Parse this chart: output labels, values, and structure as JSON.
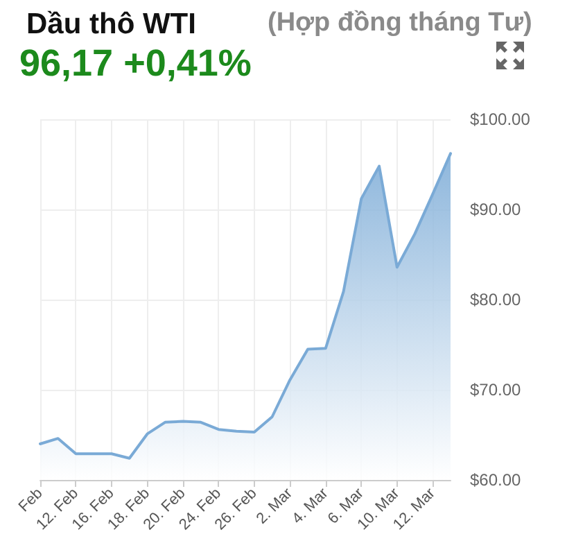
{
  "chart_data": {
    "type": "area",
    "title": "Dầu thô WTI",
    "subtitle": "(Hợp đồng tháng Tư)",
    "annotations": [
      "96,17 +0,41%"
    ],
    "categories": [
      "Feb",
      null,
      "12. Feb",
      null,
      "16. Feb",
      null,
      "18. Feb",
      null,
      "20. Feb",
      null,
      "24. Feb",
      null,
      "26. Feb",
      null,
      "2. Mar",
      null,
      "4. Mar",
      null,
      "6. Mar",
      null,
      "10. Mar",
      null,
      "12. Mar",
      null
    ],
    "series": [
      {
        "color": "#7aaad6",
        "values": [
          64.0,
          64.6,
          62.9,
          62.9,
          62.9,
          62.4,
          65.1,
          66.4,
          66.5,
          66.4,
          65.6,
          65.4,
          65.3,
          67.0,
          71.1,
          74.5,
          74.6,
          80.9,
          91.2,
          94.8,
          83.6,
          87.3,
          91.7,
          96.2
        ]
      }
    ],
    "ylim": [
      60,
      100
    ],
    "yticks": [
      {
        "value": 60,
        "label": "$60.00"
      },
      {
        "value": 70,
        "label": "$70.00"
      },
      {
        "value": 80,
        "label": "$80.00"
      },
      {
        "value": 90,
        "label": "$90.00"
      },
      {
        "value": 100,
        "label": "$100.00"
      }
    ],
    "grid": true,
    "marker": "none",
    "line_style": "solid"
  }
}
